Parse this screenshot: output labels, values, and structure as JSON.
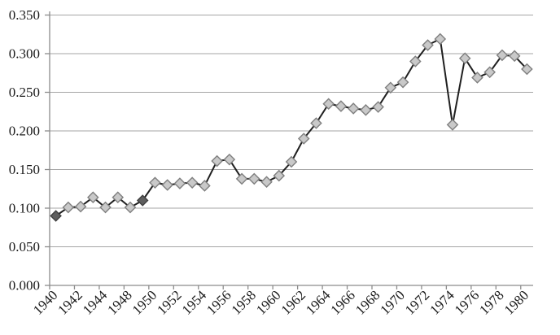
{
  "chart_data": {
    "type": "line",
    "title": "",
    "xlabel": "",
    "ylabel": "",
    "legend": "none",
    "grid": "horizontal",
    "marker": "diamond",
    "ylim": [
      0.0,
      0.35
    ],
    "y_tick_step": 0.05,
    "y_tick_labels": [
      "0.000",
      "0.050",
      "0.100",
      "0.150",
      "0.200",
      "0.250",
      "0.300",
      "0.350"
    ],
    "x_tick_labels": [
      "1940",
      "1942",
      "1944",
      "1948",
      "1950",
      "1952",
      "1954",
      "1956",
      "1958",
      "1960",
      "1962",
      "1964",
      "1966",
      "1968",
      "1970",
      "1972",
      "1974",
      "1976",
      "1978",
      "1980"
    ],
    "x_label_every": 2,
    "x_label_rotation_deg": -45,
    "categories": [
      "1940",
      "1941",
      "1942",
      "1943",
      "1944",
      "1945",
      "1948",
      "1949",
      "1950",
      "1951",
      "1952",
      "1953",
      "1954",
      "1955",
      "1956",
      "1957",
      "1958",
      "1959",
      "1960",
      "1961",
      "1962",
      "1963",
      "1964",
      "1965",
      "1966",
      "1967",
      "1968",
      "1969",
      "1970",
      "1971",
      "1972",
      "1973",
      "1974",
      "1975",
      "1976",
      "1977",
      "1978",
      "1979",
      "1980"
    ],
    "series": [
      {
        "name": "ratio-series",
        "values": [
          0.09,
          0.101,
          0.102,
          0.114,
          0.101,
          0.114,
          0.101,
          0.11,
          0.133,
          0.13,
          0.132,
          0.133,
          0.129,
          0.161,
          0.163,
          0.138,
          0.138,
          0.134,
          0.142,
          0.16,
          0.19,
          0.21,
          0.235,
          0.232,
          0.229,
          0.227,
          0.231,
          0.256,
          0.263,
          0.29,
          0.311,
          0.319,
          0.208,
          0.294,
          0.269,
          0.276,
          0.298,
          0.297,
          0.28
        ],
        "highlighted_indices": [
          0,
          7
        ]
      }
    ],
    "colors": {
      "line": "#1f1f1f",
      "marker_fill": "#c9c9c9",
      "marker_stroke": "#7f7f7f",
      "marker_highlight_fill": "#5e5e5e",
      "marker_highlight_stroke": "#3f3f3f",
      "gridline": "#a6a6a6",
      "axis": "#8c8c8c",
      "text": "#1a1a1a",
      "background": "#ffffff"
    }
  }
}
